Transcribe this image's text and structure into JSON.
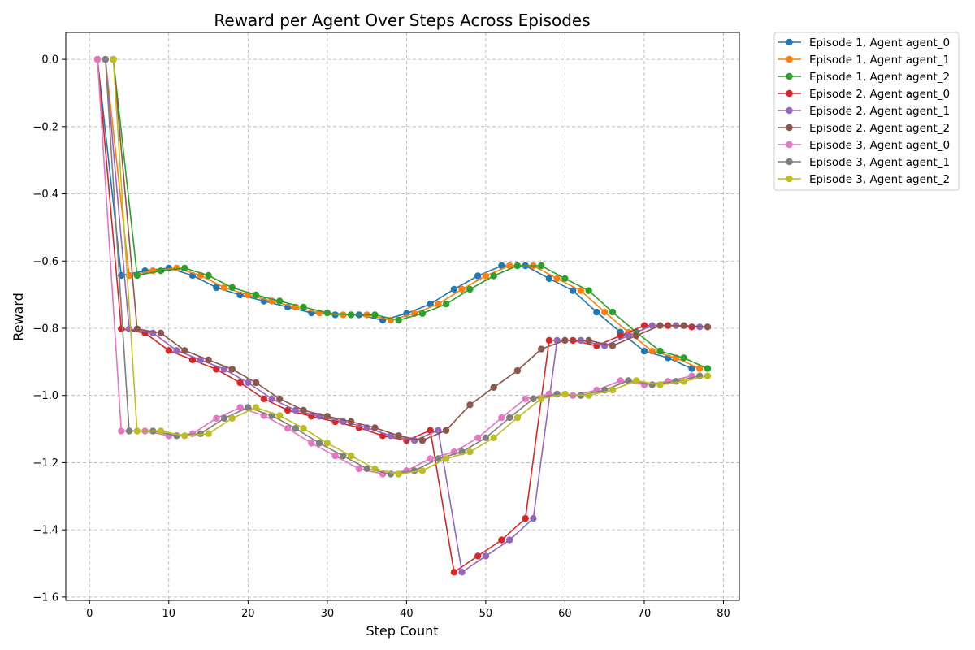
{
  "chart_data": {
    "type": "line",
    "title": "Reward per Agent Over Steps Across Episodes",
    "xlabel": "Step Count",
    "ylabel": "Reward",
    "xlim": [
      -3,
      82
    ],
    "ylim": [
      -1.61,
      0.08
    ],
    "xticks": [
      0,
      10,
      20,
      30,
      40,
      50,
      60,
      70,
      80
    ],
    "yticks": [
      0.0,
      -0.2,
      -0.4,
      -0.6,
      -0.8,
      -1.0,
      -1.2,
      -1.4,
      -1.6
    ],
    "grid": true,
    "legend_position": "outside-right",
    "series": [
      {
        "name": "Episode 1, Agent agent_0",
        "color": "#1f77b4",
        "x": [
          1,
          4,
          7,
          10,
          13,
          16,
          19,
          22,
          25,
          28,
          31,
          34,
          37,
          40,
          43,
          46,
          49,
          52,
          55,
          58,
          61,
          64,
          67,
          70,
          73,
          76
        ],
        "y": [
          0,
          -0.643,
          -0.629,
          -0.621,
          -0.643,
          -0.679,
          -0.701,
          -0.719,
          -0.737,
          -0.754,
          -0.76,
          -0.76,
          -0.776,
          -0.756,
          -0.728,
          -0.684,
          -0.644,
          -0.614,
          -0.614,
          -0.652,
          -0.688,
          -0.752,
          -0.812,
          -0.868,
          -0.888,
          -0.92
        ]
      },
      {
        "name": "Episode 1, Agent agent_1",
        "color": "#ff7f0e",
        "x": [
          2,
          5,
          8,
          11,
          14,
          17,
          20,
          23,
          26,
          29,
          32,
          35,
          38,
          41,
          44,
          47,
          50,
          53,
          56,
          59,
          62,
          65,
          68,
          71,
          74,
          77
        ],
        "y": [
          0,
          -0.643,
          -0.629,
          -0.621,
          -0.643,
          -0.679,
          -0.701,
          -0.719,
          -0.737,
          -0.754,
          -0.76,
          -0.76,
          -0.776,
          -0.756,
          -0.728,
          -0.684,
          -0.644,
          -0.614,
          -0.614,
          -0.652,
          -0.688,
          -0.752,
          -0.812,
          -0.868,
          -0.888,
          -0.92
        ]
      },
      {
        "name": "Episode 1, Agent agent_2",
        "color": "#2ca02c",
        "x": [
          3,
          6,
          9,
          12,
          15,
          18,
          21,
          24,
          27,
          30,
          33,
          36,
          39,
          42,
          45,
          48,
          51,
          54,
          57,
          60,
          63,
          66,
          69,
          72,
          75,
          78
        ],
        "y": [
          0,
          -0.643,
          -0.629,
          -0.621,
          -0.643,
          -0.679,
          -0.701,
          -0.719,
          -0.737,
          -0.754,
          -0.76,
          -0.76,
          -0.776,
          -0.756,
          -0.728,
          -0.684,
          -0.644,
          -0.614,
          -0.614,
          -0.652,
          -0.688,
          -0.752,
          -0.812,
          -0.868,
          -0.888,
          -0.92
        ]
      },
      {
        "name": "Episode 2, Agent agent_0",
        "color": "#d62728",
        "x": [
          1,
          4,
          7,
          10,
          13,
          16,
          19,
          22,
          25,
          28,
          31,
          34,
          37,
          40,
          43,
          46,
          49,
          52,
          55,
          58,
          61,
          64,
          67,
          70,
          73,
          76
        ],
        "y": [
          0,
          -0.802,
          -0.814,
          -0.866,
          -0.894,
          -0.922,
          -0.962,
          -1.01,
          -1.044,
          -1.062,
          -1.078,
          -1.096,
          -1.12,
          -1.134,
          -1.104,
          -1.526,
          -1.478,
          -1.43,
          -1.366,
          -0.836,
          -0.836,
          -0.852,
          -0.822,
          -0.792,
          -0.792,
          -0.796
        ]
      },
      {
        "name": "Episode 2, Agent agent_1",
        "color": "#9467bd",
        "x": [
          2,
          5,
          8,
          11,
          14,
          17,
          20,
          23,
          26,
          29,
          32,
          35,
          38,
          41,
          44,
          47,
          50,
          53,
          56,
          59,
          62,
          65,
          68,
          71,
          74,
          77
        ],
        "y": [
          0,
          -0.802,
          -0.814,
          -0.866,
          -0.894,
          -0.922,
          -0.962,
          -1.01,
          -1.044,
          -1.062,
          -1.078,
          -1.096,
          -1.12,
          -1.134,
          -1.104,
          -1.526,
          -1.478,
          -1.43,
          -1.366,
          -0.836,
          -0.836,
          -0.852,
          -0.822,
          -0.792,
          -0.792,
          -0.796
        ]
      },
      {
        "name": "Episode 2, Agent agent_2",
        "color": "#8c564b",
        "x": [
          3,
          6,
          9,
          12,
          15,
          18,
          21,
          24,
          27,
          30,
          33,
          36,
          39,
          42,
          45,
          48,
          51,
          54,
          57,
          60,
          63,
          66,
          69,
          72,
          75,
          78
        ],
        "y": [
          0,
          -0.802,
          -0.814,
          -0.866,
          -0.894,
          -0.922,
          -0.962,
          -1.01,
          -1.044,
          -1.062,
          -1.078,
          -1.096,
          -1.12,
          -1.134,
          -1.104,
          -1.028,
          -0.976,
          -0.926,
          -0.862,
          -0.836,
          -0.836,
          -0.852,
          -0.822,
          -0.792,
          -0.792,
          -0.796
        ]
      },
      {
        "name": "Episode 3, Agent agent_0",
        "color": "#e377c2",
        "x": [
          1,
          4,
          7,
          10,
          13,
          16,
          19,
          22,
          25,
          28,
          31,
          34,
          37,
          40,
          43,
          46,
          49,
          52,
          55,
          58,
          61,
          64,
          67,
          70,
          73,
          76
        ],
        "y": [
          0,
          -1.106,
          -1.106,
          -1.12,
          -1.114,
          -1.068,
          -1.036,
          -1.06,
          -1.098,
          -1.142,
          -1.18,
          -1.218,
          -1.234,
          -1.224,
          -1.188,
          -1.168,
          -1.126,
          -1.066,
          -1.01,
          -0.996,
          -1.0,
          -0.984,
          -0.956,
          -0.968,
          -0.958,
          -0.942
        ]
      },
      {
        "name": "Episode 3, Agent agent_1",
        "color": "#7f7f7f",
        "x": [
          2,
          5,
          8,
          11,
          14,
          17,
          20,
          23,
          26,
          29,
          32,
          35,
          38,
          41,
          44,
          47,
          50,
          53,
          56,
          59,
          62,
          65,
          68,
          71,
          74,
          77
        ],
        "y": [
          0,
          -1.106,
          -1.106,
          -1.12,
          -1.114,
          -1.068,
          -1.036,
          -1.06,
          -1.098,
          -1.142,
          -1.18,
          -1.218,
          -1.234,
          -1.224,
          -1.188,
          -1.168,
          -1.126,
          -1.066,
          -1.01,
          -0.996,
          -1.0,
          -0.984,
          -0.956,
          -0.968,
          -0.958,
          -0.942
        ]
      },
      {
        "name": "Episode 3, Agent agent_2",
        "color": "#bcbd22",
        "x": [
          3,
          6,
          9,
          12,
          15,
          18,
          21,
          24,
          27,
          30,
          33,
          36,
          39,
          42,
          45,
          48,
          51,
          54,
          57,
          60,
          63,
          66,
          69,
          72,
          75,
          78
        ],
        "y": [
          0,
          -1.106,
          -1.106,
          -1.12,
          -1.114,
          -1.068,
          -1.036,
          -1.06,
          -1.098,
          -1.142,
          -1.18,
          -1.218,
          -1.234,
          -1.224,
          -1.188,
          -1.168,
          -1.126,
          -1.066,
          -1.01,
          -0.996,
          -1.0,
          -0.984,
          -0.956,
          -0.968,
          -0.958,
          -0.942
        ]
      }
    ]
  }
}
